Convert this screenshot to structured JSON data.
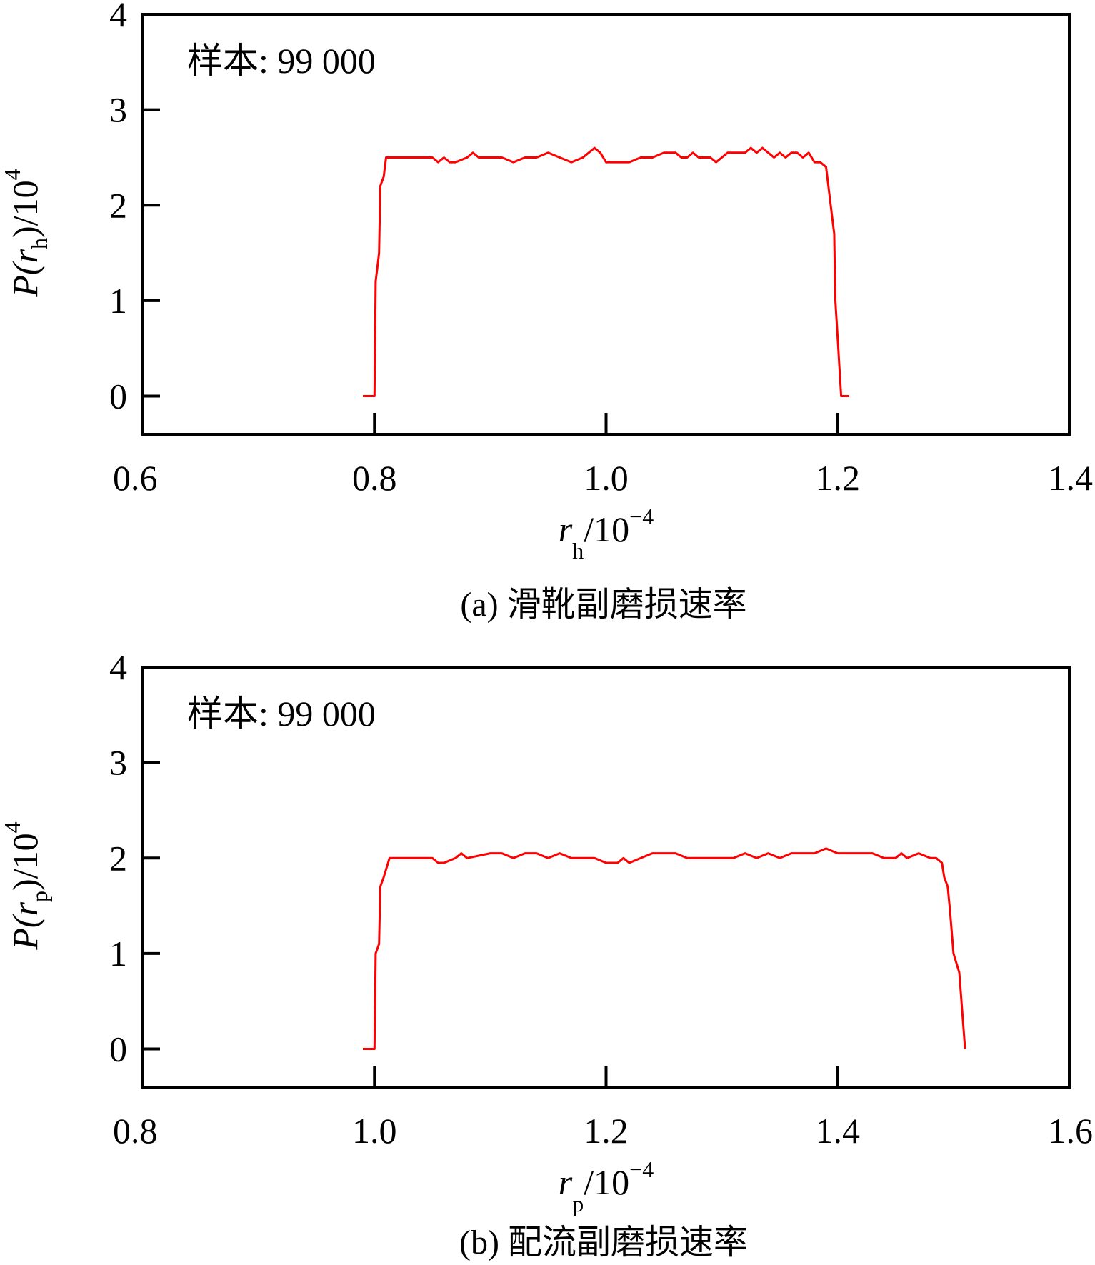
{
  "figure": {
    "background": "#ffffff",
    "line_color": "#ff0000",
    "axis_color": "#000000"
  },
  "chart_data": [
    {
      "type": "line",
      "panel": "a",
      "annotation": "样本: 99 000",
      "caption": "(a) 滑靴副磨损速率",
      "xlabel": {
        "main": "r",
        "sub": "h",
        "rest": "/10",
        "sup": "−4"
      },
      "ylabel": {
        "p": "P(",
        "main": "r",
        "sub": "h",
        "rest": ")/10",
        "sup": "4"
      },
      "xlim": [
        0.6,
        1.4
      ],
      "ylim": [
        -0.4,
        4
      ],
      "xticks": [
        0.6,
        0.8,
        1.0,
        1.2,
        1.4
      ],
      "xtick_labels": [
        "0.6",
        "0.8",
        "1.0",
        "1.2",
        "1.4"
      ],
      "yticks": [
        0,
        1,
        2,
        3,
        4
      ],
      "ytick_labels": [
        "0",
        "1",
        "2",
        "3",
        "4"
      ],
      "grid": false,
      "series": [
        {
          "color": "#ff0000",
          "x": [
            0.79,
            0.8,
            0.801,
            0.804,
            0.805,
            0.808,
            0.81,
            0.83,
            0.85,
            0.855,
            0.86,
            0.865,
            0.87,
            0.88,
            0.885,
            0.89,
            0.9,
            0.91,
            0.92,
            0.93,
            0.94,
            0.95,
            0.96,
            0.97,
            0.98,
            0.985,
            0.99,
            0.995,
            1.0,
            1.005,
            1.02,
            1.03,
            1.04,
            1.05,
            1.06,
            1.065,
            1.07,
            1.075,
            1.08,
            1.09,
            1.095,
            1.1,
            1.105,
            1.11,
            1.12,
            1.125,
            1.13,
            1.135,
            1.14,
            1.145,
            1.15,
            1.155,
            1.16,
            1.165,
            1.17,
            1.175,
            1.18,
            1.185,
            1.19,
            1.195,
            1.197,
            1.198,
            1.2,
            1.203,
            1.21
          ],
          "y": [
            0,
            0,
            1.2,
            1.5,
            2.2,
            2.3,
            2.5,
            2.5,
            2.5,
            2.45,
            2.5,
            2.45,
            2.45,
            2.5,
            2.55,
            2.5,
            2.5,
            2.5,
            2.45,
            2.5,
            2.5,
            2.55,
            2.5,
            2.45,
            2.5,
            2.55,
            2.6,
            2.55,
            2.45,
            2.45,
            2.45,
            2.5,
            2.5,
            2.55,
            2.55,
            2.5,
            2.5,
            2.55,
            2.5,
            2.5,
            2.45,
            2.5,
            2.55,
            2.55,
            2.55,
            2.6,
            2.55,
            2.6,
            2.55,
            2.5,
            2.55,
            2.5,
            2.55,
            2.55,
            2.5,
            2.55,
            2.45,
            2.45,
            2.4,
            1.9,
            1.7,
            1.0,
            0.6,
            0,
            0
          ]
        }
      ]
    },
    {
      "type": "line",
      "panel": "b",
      "annotation": "样本: 99 000",
      "caption": "(b) 配流副磨损速率",
      "xlabel": {
        "main": "r",
        "sub": "p",
        "rest": "/10",
        "sup": "−4"
      },
      "ylabel": {
        "p": "P(",
        "main": "r",
        "sub": "p",
        "rest": ")/10",
        "sup": "4"
      },
      "xlim": [
        0.8,
        1.6
      ],
      "ylim": [
        -0.4,
        4
      ],
      "xticks": [
        0.8,
        1.0,
        1.2,
        1.4,
        1.6
      ],
      "xtick_labels": [
        "0.8",
        "1.0",
        "1.2",
        "1.4",
        "1.6"
      ],
      "yticks": [
        0,
        1,
        2,
        3,
        4
      ],
      "ytick_labels": [
        "0",
        "1",
        "2",
        "3",
        "4"
      ],
      "grid": false,
      "series": [
        {
          "color": "#ff0000",
          "x": [
            0.99,
            1.0,
            1.001,
            1.004,
            1.005,
            1.008,
            1.013,
            1.03,
            1.05,
            1.055,
            1.06,
            1.07,
            1.075,
            1.08,
            1.1,
            1.11,
            1.12,
            1.13,
            1.14,
            1.15,
            1.16,
            1.17,
            1.18,
            1.19,
            1.2,
            1.21,
            1.215,
            1.22,
            1.23,
            1.24,
            1.25,
            1.26,
            1.27,
            1.28,
            1.3,
            1.31,
            1.32,
            1.33,
            1.34,
            1.35,
            1.36,
            1.37,
            1.38,
            1.39,
            1.4,
            1.42,
            1.43,
            1.44,
            1.45,
            1.455,
            1.46,
            1.47,
            1.48,
            1.485,
            1.49,
            1.492,
            1.495,
            1.497,
            1.5,
            1.505,
            1.51
          ],
          "y": [
            0,
            0,
            1.0,
            1.1,
            1.7,
            1.8,
            2.0,
            2.0,
            2.0,
            1.95,
            1.95,
            2.0,
            2.05,
            2.0,
            2.05,
            2.05,
            2.0,
            2.05,
            2.05,
            2.0,
            2.05,
            2.0,
            2.0,
            2.0,
            1.95,
            1.95,
            2.0,
            1.95,
            2.0,
            2.05,
            2.05,
            2.05,
            2.0,
            2.0,
            2.0,
            2.0,
            2.05,
            2.0,
            2.05,
            2.0,
            2.05,
            2.05,
            2.05,
            2.1,
            2.05,
            2.05,
            2.05,
            2.0,
            2.0,
            2.05,
            2.0,
            2.05,
            2.0,
            2.0,
            1.95,
            1.8,
            1.7,
            1.45,
            1.0,
            0.8,
            0
          ]
        }
      ]
    }
  ]
}
